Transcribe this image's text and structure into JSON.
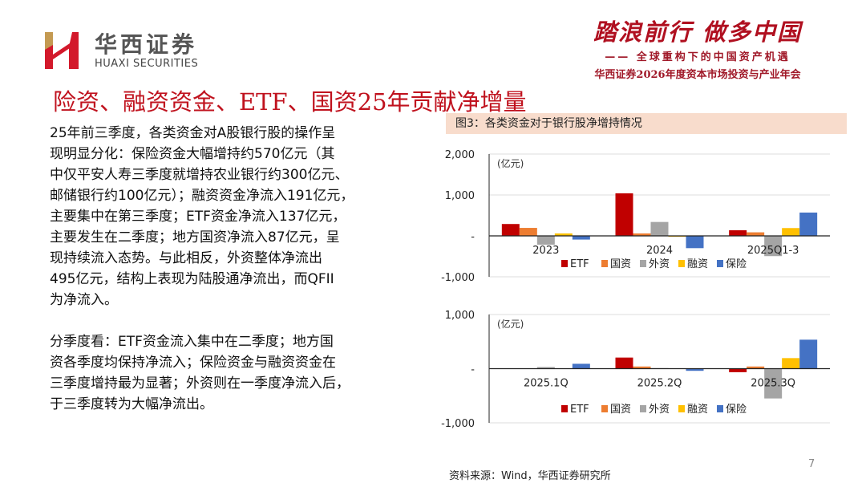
{
  "header": {
    "logo_cn": "华西证券",
    "logo_en": "HUAXI SECURITIES",
    "slogan_main": "踏浪前行 做多中国",
    "slogan_sub": "—— 全球重构下的中国资产机遇",
    "slogan_conf": "华西证券2026年度资本市场投资与产业年会"
  },
  "title": "险资、融资资金、ETF、国资25年贡献净增量",
  "body": {
    "para1": [
      "25年前三季度，各类资金对A股银行股的操作呈",
      "现明显分化：保险资金大幅增持约570亿元（其",
      "中仅平安人寿三季度就增持农业银行约300亿元、",
      "邮储银行约100亿元）；融资资金净流入191亿元，",
      "主要集中在第三季度；ETF资金净流入137亿元，",
      "主要发生在二季度；地方国资净流入87亿元，呈",
      "现持续流入态势。与此相反，外资整体净流出",
      "495亿元，结构上表现为陆股通净流出，而QFII",
      "为净流入。"
    ],
    "para2": [
      "分季度看：ETF资金流入集中在二季度；地方国",
      "资各季度均保持净流入；保险资金与融资资金在",
      "三季度增持最为显著；外资则在一季度净流入后，",
      "于三季度转为大幅净流出。"
    ]
  },
  "figure_title": "图3：各类资金对于银行股净增持情况",
  "source": "资料来源：Wind，华西证券研究所",
  "page_number": "7",
  "colors": {
    "ETF": "#c00000",
    "国资": "#ed7d31",
    "外资": "#a5a5a5",
    "融资": "#ffc000",
    "保险": "#4472c4",
    "title": "#c0121e"
  },
  "chart_data": [
    {
      "type": "bar",
      "unit_label": "(亿元)",
      "categories": [
        "2023",
        "2024",
        "2025Q1-3"
      ],
      "series": [
        {
          "name": "ETF",
          "values": [
            290,
            1040,
            137
          ]
        },
        {
          "name": "国资",
          "values": [
            195,
            60,
            87
          ]
        },
        {
          "name": "外资",
          "values": [
            -215,
            340,
            -495
          ]
        },
        {
          "name": "融资",
          "values": [
            60,
            -20,
            191
          ]
        },
        {
          "name": "保险",
          "values": [
            -90,
            -300,
            570
          ]
        }
      ],
      "ylim": [
        -1000,
        2000
      ],
      "yticks": [
        2000,
        1000,
        0,
        -1000
      ],
      "ytick_labels": [
        "2,000",
        "1,000",
        "-",
        "-1,000"
      ],
      "grid": true,
      "legend": "bottom"
    },
    {
      "type": "bar",
      "unit_label": "(亿元)",
      "categories": [
        "2025.1Q",
        "2025.2Q",
        "2025.3Q"
      ],
      "series": [
        {
          "name": "ETF",
          "values": [
            5,
            205,
            -65
          ]
        },
        {
          "name": "国资",
          "values": [
            5,
            40,
            40
          ]
        },
        {
          "name": "外资",
          "values": [
            30,
            10,
            -550
          ]
        },
        {
          "name": "融资",
          "values": [
            0,
            0,
            195
          ]
        },
        {
          "name": "保险",
          "values": [
            90,
            -40,
            535
          ]
        }
      ],
      "ylim": [
        -1000,
        1000
      ],
      "yticks": [
        1000,
        0,
        -1000
      ],
      "ytick_labels": [
        "1,000",
        "-",
        "-1,000"
      ],
      "grid": true,
      "legend": "bottom"
    }
  ]
}
